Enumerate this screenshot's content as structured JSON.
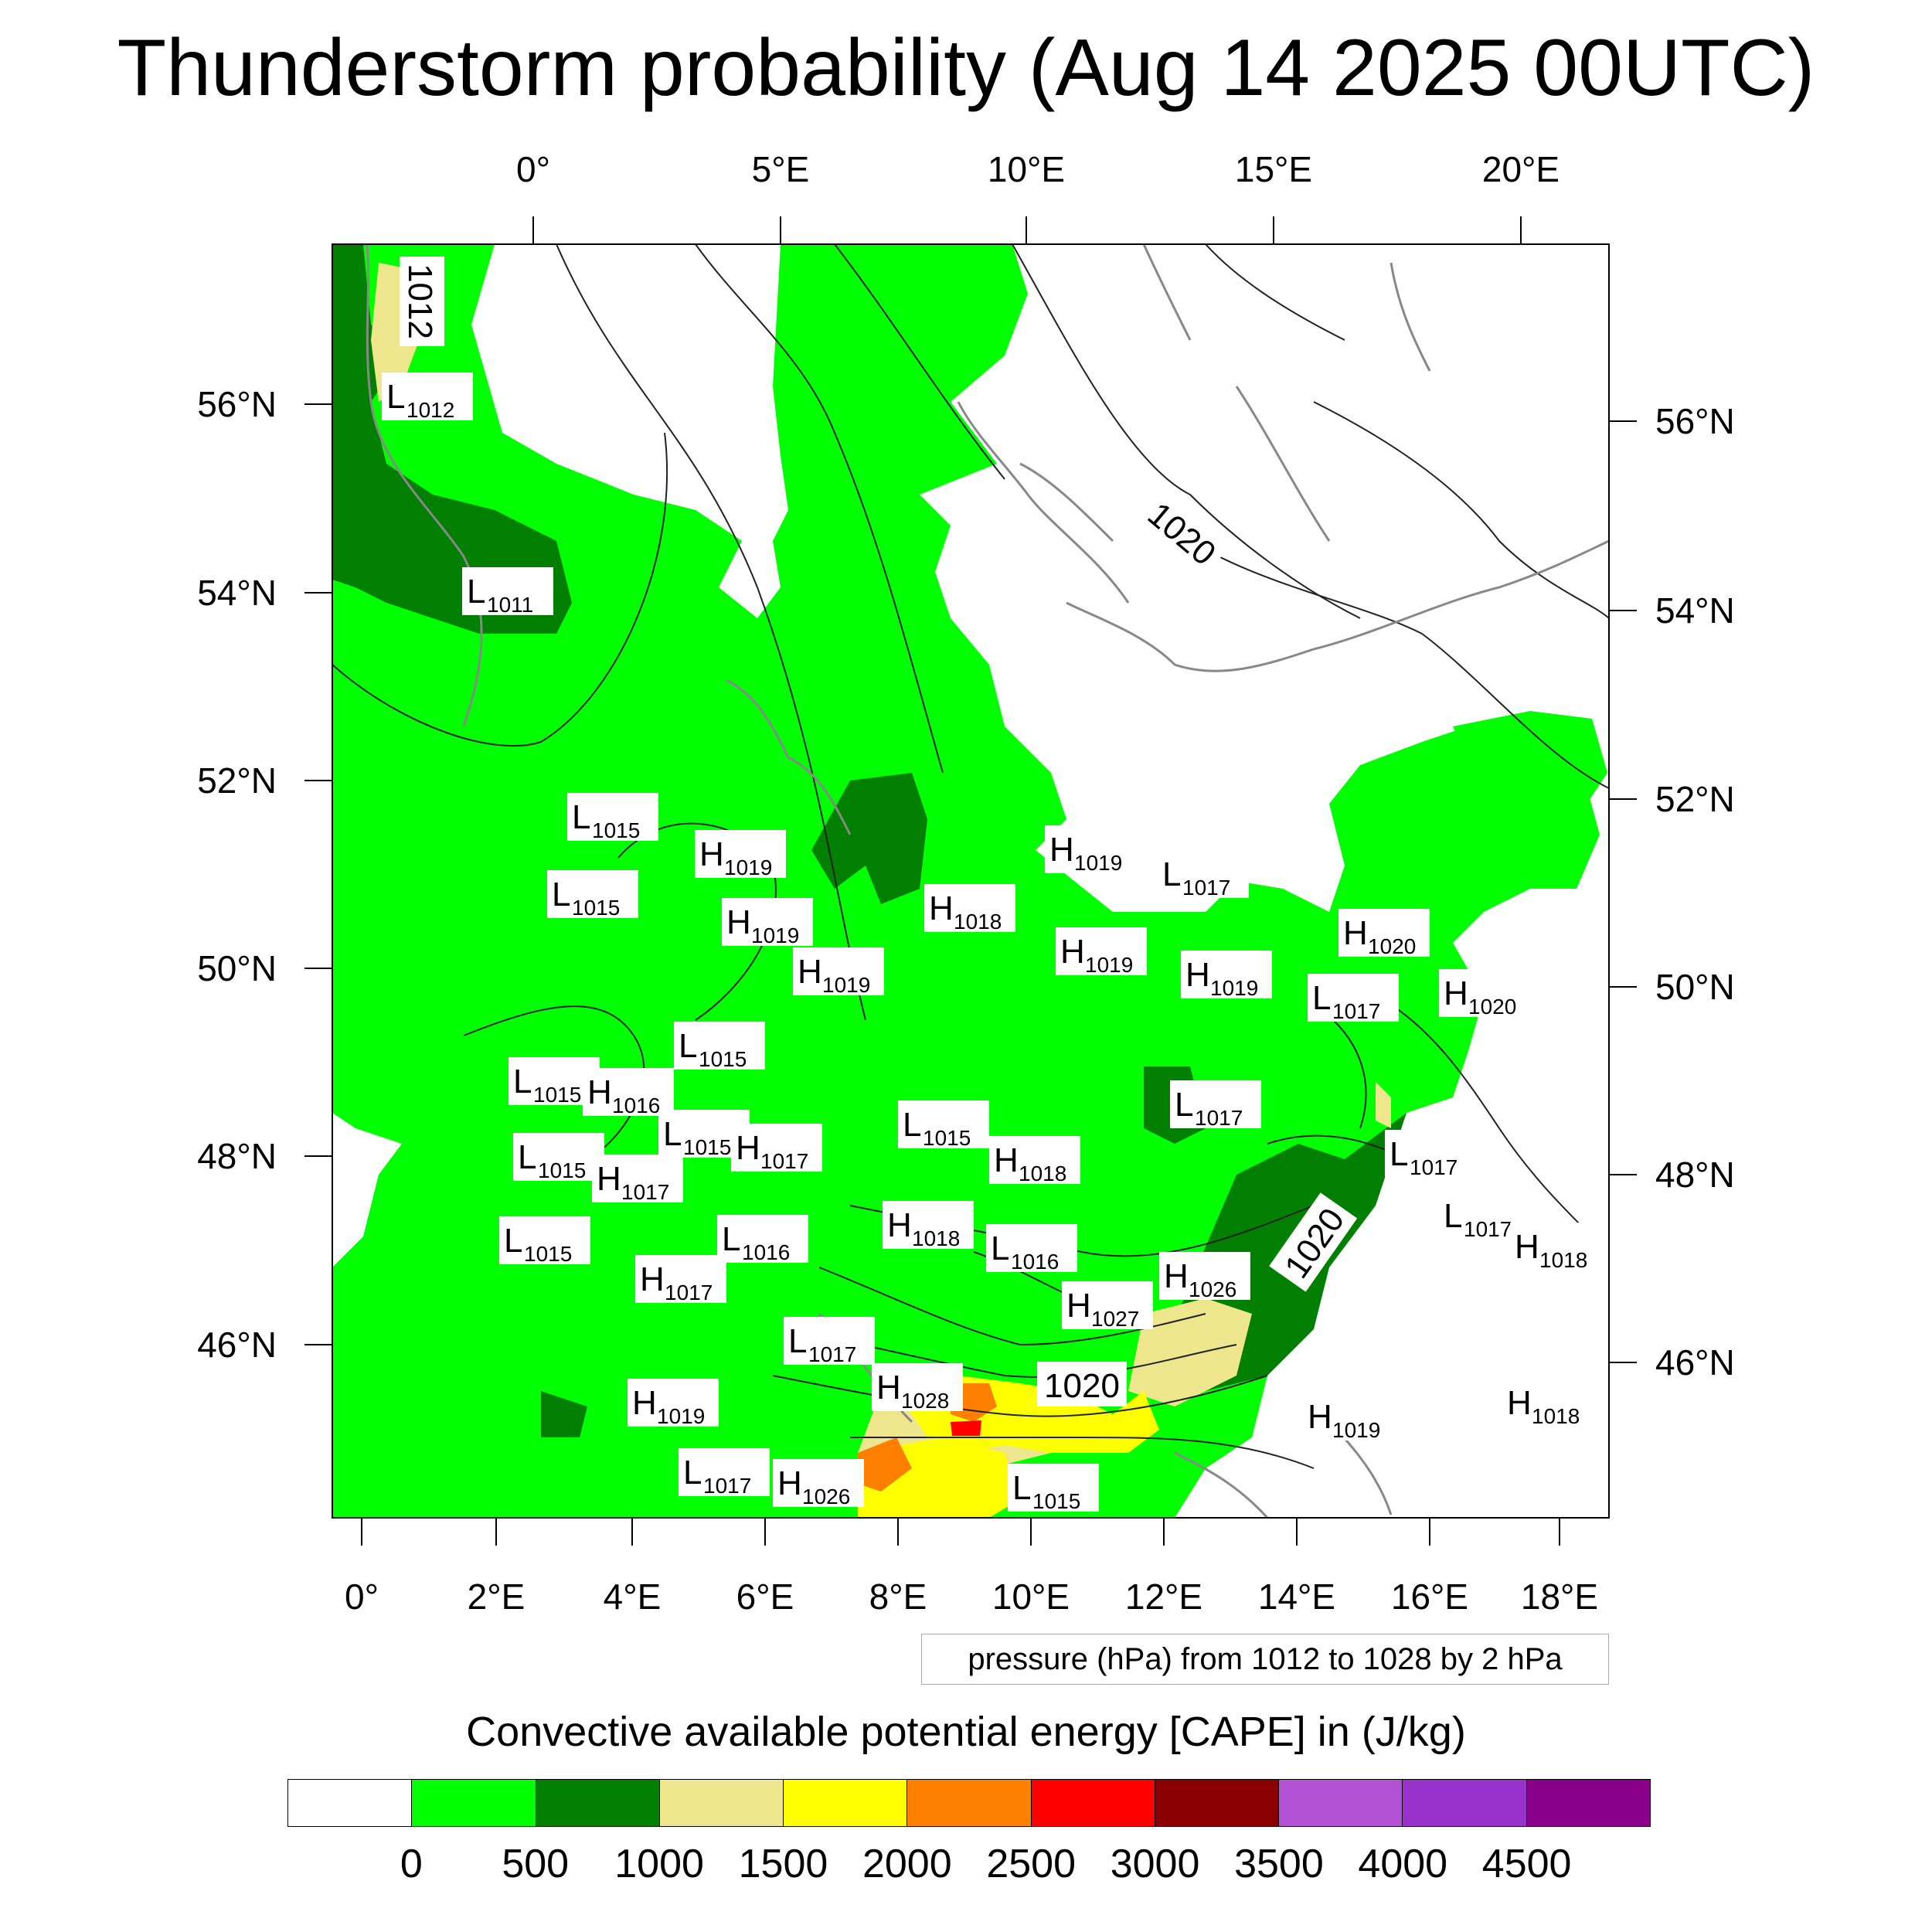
{
  "title": "Thunderstorm probability (Aug 14 2025 00UTC)",
  "top_axis_labels": [
    "0°",
    "5°E",
    "10°E",
    "15°E",
    "20°E"
  ],
  "bottom_axis_labels": [
    "0°",
    "2°E",
    "4°E",
    "6°E",
    "8°E",
    "10°E",
    "12°E",
    "14°E",
    "16°E",
    "18°E"
  ],
  "left_axis_labels": [
    "56°N",
    "54°N",
    "52°N",
    "50°N",
    "48°N",
    "46°N"
  ],
  "right_axis_labels": [
    "56°N",
    "54°N",
    "52°N",
    "50°N",
    "48°N",
    "46°N"
  ],
  "isobar_labels": [
    "1012",
    "1020",
    "1020",
    "1020"
  ],
  "pressure_centers": [
    {
      "type": "L",
      "value": "1012"
    },
    {
      "type": "L",
      "value": "1011"
    },
    {
      "type": "L",
      "value": "1015"
    },
    {
      "type": "H",
      "value": "1019"
    },
    {
      "type": "L",
      "value": "1015"
    },
    {
      "type": "H",
      "value": "1019"
    },
    {
      "type": "H",
      "value": "1019"
    },
    {
      "type": "H",
      "value": "1018"
    },
    {
      "type": "H",
      "value": "1019"
    },
    {
      "type": "L",
      "value": "1017"
    },
    {
      "type": "H",
      "value": "1020"
    },
    {
      "type": "H",
      "value": "1019"
    },
    {
      "type": "H",
      "value": "1019"
    },
    {
      "type": "H",
      "value": "1020"
    },
    {
      "type": "L",
      "value": "1017"
    },
    {
      "type": "L",
      "value": "1015"
    },
    {
      "type": "L",
      "value": "1015"
    },
    {
      "type": "H",
      "value": "1016"
    },
    {
      "type": "L",
      "value": "1015"
    },
    {
      "type": "H",
      "value": "1017"
    },
    {
      "type": "L",
      "value": "1015"
    },
    {
      "type": "H",
      "value": "1017"
    },
    {
      "type": "L",
      "value": "1015"
    },
    {
      "type": "H",
      "value": "1018"
    },
    {
      "type": "L",
      "value": "1015"
    },
    {
      "type": "L",
      "value": "1016"
    },
    {
      "type": "H",
      "value": "1017"
    },
    {
      "type": "L",
      "value": "1016"
    },
    {
      "type": "H",
      "value": "1026"
    },
    {
      "type": "H",
      "value": "1027"
    },
    {
      "type": "L",
      "value": "1017"
    },
    {
      "type": "L",
      "value": "1017"
    },
    {
      "type": "L",
      "value": "1017"
    },
    {
      "type": "H",
      "value": "1018"
    },
    {
      "type": "H",
      "value": "1018"
    },
    {
      "type": "L",
      "value": "1017"
    },
    {
      "type": "H",
      "value": "1028"
    },
    {
      "type": "H",
      "value": "1019"
    },
    {
      "type": "L",
      "value": "1017"
    },
    {
      "type": "H",
      "value": "1026"
    },
    {
      "type": "L",
      "value": "1015"
    },
    {
      "type": "H",
      "value": "1019"
    },
    {
      "type": "H",
      "value": "1018"
    }
  ],
  "legend_note": "pressure (hPa) from 1012 to 1028 by 2 hPa",
  "colorbar": {
    "title": "Convective available potential energy [CAPE] in (J/kg)",
    "colors": [
      "#ffffff",
      "#00ff00",
      "#007f00",
      "#eee68c",
      "#ffff00",
      "#ff8000",
      "#ff0000",
      "#8b0000",
      "#b452d6",
      "#9932cc",
      "#8b008b"
    ],
    "ticks": [
      "0",
      "500",
      "1000",
      "1500",
      "2000",
      "2500",
      "3000",
      "3500",
      "4000",
      "4500"
    ]
  }
}
